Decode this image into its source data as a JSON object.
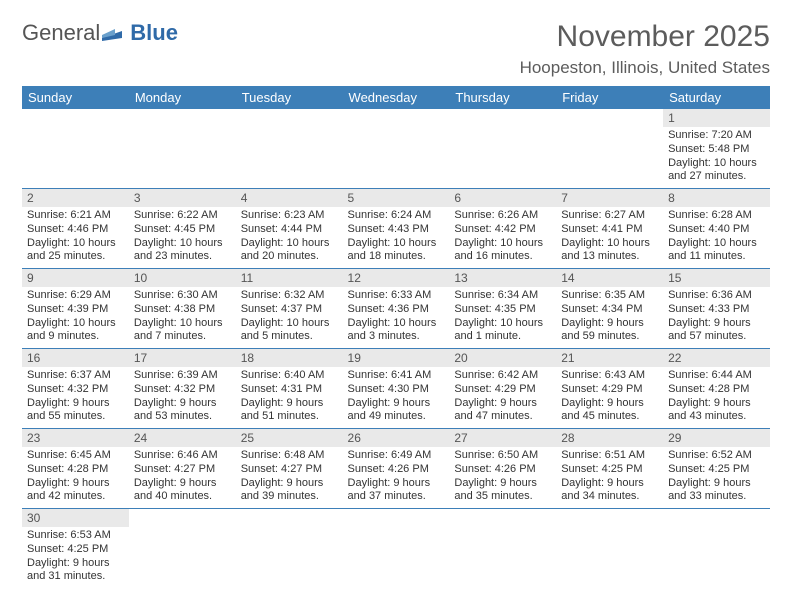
{
  "logo": {
    "part1": "General",
    "part2": "Blue"
  },
  "title": "November 2025",
  "location": "Hoopeston, Illinois, United States",
  "colors": {
    "headerBg": "#3d7fb8",
    "dayBg": "#e9e9e9",
    "border": "#3d7fb8"
  },
  "dayHeaders": [
    "Sunday",
    "Monday",
    "Tuesday",
    "Wednesday",
    "Thursday",
    "Friday",
    "Saturday"
  ],
  "weeks": [
    [
      null,
      null,
      null,
      null,
      null,
      null,
      {
        "n": "1",
        "sr": "Sunrise: 7:20 AM",
        "ss": "Sunset: 5:48 PM",
        "dl": "Daylight: 10 hours and 27 minutes."
      }
    ],
    [
      {
        "n": "2",
        "sr": "Sunrise: 6:21 AM",
        "ss": "Sunset: 4:46 PM",
        "dl": "Daylight: 10 hours and 25 minutes."
      },
      {
        "n": "3",
        "sr": "Sunrise: 6:22 AM",
        "ss": "Sunset: 4:45 PM",
        "dl": "Daylight: 10 hours and 23 minutes."
      },
      {
        "n": "4",
        "sr": "Sunrise: 6:23 AM",
        "ss": "Sunset: 4:44 PM",
        "dl": "Daylight: 10 hours and 20 minutes."
      },
      {
        "n": "5",
        "sr": "Sunrise: 6:24 AM",
        "ss": "Sunset: 4:43 PM",
        "dl": "Daylight: 10 hours and 18 minutes."
      },
      {
        "n": "6",
        "sr": "Sunrise: 6:26 AM",
        "ss": "Sunset: 4:42 PM",
        "dl": "Daylight: 10 hours and 16 minutes."
      },
      {
        "n": "7",
        "sr": "Sunrise: 6:27 AM",
        "ss": "Sunset: 4:41 PM",
        "dl": "Daylight: 10 hours and 13 minutes."
      },
      {
        "n": "8",
        "sr": "Sunrise: 6:28 AM",
        "ss": "Sunset: 4:40 PM",
        "dl": "Daylight: 10 hours and 11 minutes."
      }
    ],
    [
      {
        "n": "9",
        "sr": "Sunrise: 6:29 AM",
        "ss": "Sunset: 4:39 PM",
        "dl": "Daylight: 10 hours and 9 minutes."
      },
      {
        "n": "10",
        "sr": "Sunrise: 6:30 AM",
        "ss": "Sunset: 4:38 PM",
        "dl": "Daylight: 10 hours and 7 minutes."
      },
      {
        "n": "11",
        "sr": "Sunrise: 6:32 AM",
        "ss": "Sunset: 4:37 PM",
        "dl": "Daylight: 10 hours and 5 minutes."
      },
      {
        "n": "12",
        "sr": "Sunrise: 6:33 AM",
        "ss": "Sunset: 4:36 PM",
        "dl": "Daylight: 10 hours and 3 minutes."
      },
      {
        "n": "13",
        "sr": "Sunrise: 6:34 AM",
        "ss": "Sunset: 4:35 PM",
        "dl": "Daylight: 10 hours and 1 minute."
      },
      {
        "n": "14",
        "sr": "Sunrise: 6:35 AM",
        "ss": "Sunset: 4:34 PM",
        "dl": "Daylight: 9 hours and 59 minutes."
      },
      {
        "n": "15",
        "sr": "Sunrise: 6:36 AM",
        "ss": "Sunset: 4:33 PM",
        "dl": "Daylight: 9 hours and 57 minutes."
      }
    ],
    [
      {
        "n": "16",
        "sr": "Sunrise: 6:37 AM",
        "ss": "Sunset: 4:32 PM",
        "dl": "Daylight: 9 hours and 55 minutes."
      },
      {
        "n": "17",
        "sr": "Sunrise: 6:39 AM",
        "ss": "Sunset: 4:32 PM",
        "dl": "Daylight: 9 hours and 53 minutes."
      },
      {
        "n": "18",
        "sr": "Sunrise: 6:40 AM",
        "ss": "Sunset: 4:31 PM",
        "dl": "Daylight: 9 hours and 51 minutes."
      },
      {
        "n": "19",
        "sr": "Sunrise: 6:41 AM",
        "ss": "Sunset: 4:30 PM",
        "dl": "Daylight: 9 hours and 49 minutes."
      },
      {
        "n": "20",
        "sr": "Sunrise: 6:42 AM",
        "ss": "Sunset: 4:29 PM",
        "dl": "Daylight: 9 hours and 47 minutes."
      },
      {
        "n": "21",
        "sr": "Sunrise: 6:43 AM",
        "ss": "Sunset: 4:29 PM",
        "dl": "Daylight: 9 hours and 45 minutes."
      },
      {
        "n": "22",
        "sr": "Sunrise: 6:44 AM",
        "ss": "Sunset: 4:28 PM",
        "dl": "Daylight: 9 hours and 43 minutes."
      }
    ],
    [
      {
        "n": "23",
        "sr": "Sunrise: 6:45 AM",
        "ss": "Sunset: 4:28 PM",
        "dl": "Daylight: 9 hours and 42 minutes."
      },
      {
        "n": "24",
        "sr": "Sunrise: 6:46 AM",
        "ss": "Sunset: 4:27 PM",
        "dl": "Daylight: 9 hours and 40 minutes."
      },
      {
        "n": "25",
        "sr": "Sunrise: 6:48 AM",
        "ss": "Sunset: 4:27 PM",
        "dl": "Daylight: 9 hours and 39 minutes."
      },
      {
        "n": "26",
        "sr": "Sunrise: 6:49 AM",
        "ss": "Sunset: 4:26 PM",
        "dl": "Daylight: 9 hours and 37 minutes."
      },
      {
        "n": "27",
        "sr": "Sunrise: 6:50 AM",
        "ss": "Sunset: 4:26 PM",
        "dl": "Daylight: 9 hours and 35 minutes."
      },
      {
        "n": "28",
        "sr": "Sunrise: 6:51 AM",
        "ss": "Sunset: 4:25 PM",
        "dl": "Daylight: 9 hours and 34 minutes."
      },
      {
        "n": "29",
        "sr": "Sunrise: 6:52 AM",
        "ss": "Sunset: 4:25 PM",
        "dl": "Daylight: 9 hours and 33 minutes."
      }
    ],
    [
      {
        "n": "30",
        "sr": "Sunrise: 6:53 AM",
        "ss": "Sunset: 4:25 PM",
        "dl": "Daylight: 9 hours and 31 minutes."
      },
      null,
      null,
      null,
      null,
      null,
      null
    ]
  ]
}
